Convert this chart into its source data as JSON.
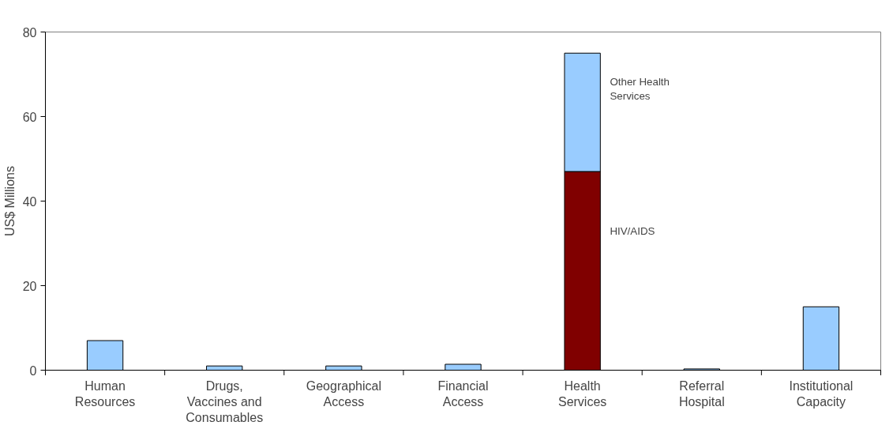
{
  "chart_data": {
    "type": "bar",
    "ylabel": "US$ Millions",
    "categories": [
      "Human Resources",
      "Drugs, Vaccines and Consumables",
      "Geographical Access",
      "Financial Access",
      "Health Services",
      "Referral Hospital",
      "Institutional Capacity"
    ],
    "stacked": true,
    "series": [
      {
        "name": "HIV/AIDS",
        "color": "#800000",
        "values": [
          null,
          null,
          null,
          null,
          47,
          null,
          null
        ]
      },
      {
        "name": "Other Health Services",
        "color": "#99ccff",
        "values": [
          7,
          1,
          1,
          1.4,
          28,
          0.3,
          15
        ]
      }
    ],
    "ylim": [
      0,
      80
    ],
    "yticks": [
      0,
      20,
      40,
      60,
      80
    ],
    "grid": false,
    "legend": false
  }
}
